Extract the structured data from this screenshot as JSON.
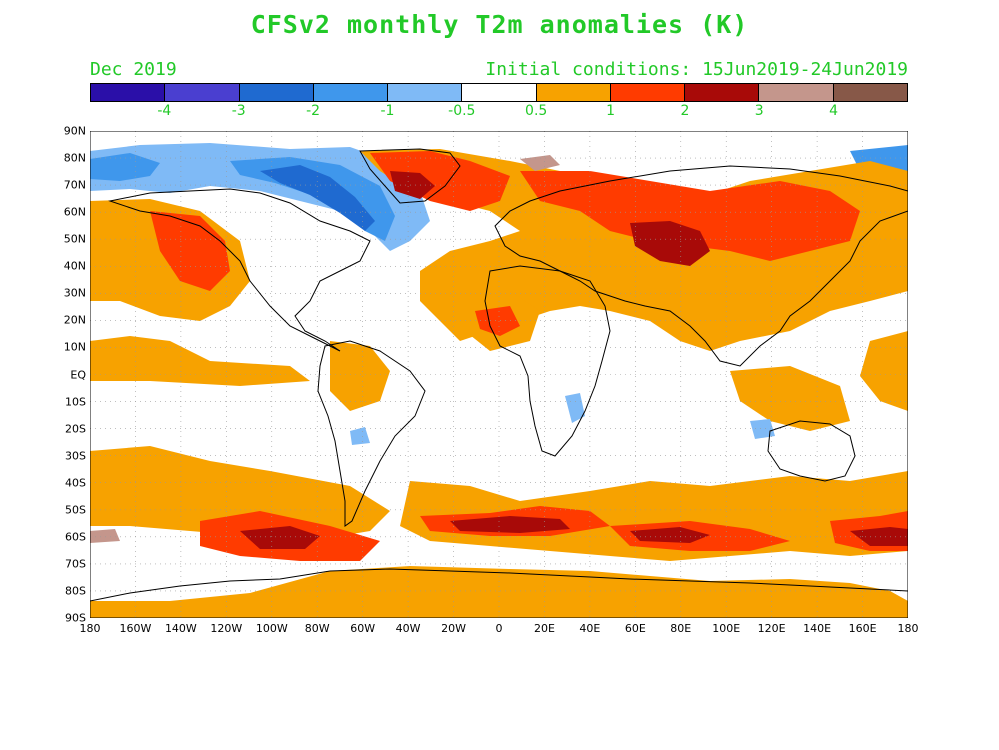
{
  "title": "CFSv2 monthly T2m anomalies (K)",
  "valid_month": "Dec 2019",
  "initial_conditions": "Initial conditions: 15Jun2019-24Jun2019",
  "colorbar": {
    "colors": [
      "#2a0fa8",
      "#4a3fd0",
      "#1f6ad0",
      "#3f97ec",
      "#7fbaf6",
      "#ffffff",
      "#f7a200",
      "#ff3b00",
      "#a80a08",
      "#c4968c",
      "#875848"
    ],
    "labels": [
      "-4",
      "-3",
      "-2",
      "-1",
      "-0.5",
      "0.5",
      "1",
      "2",
      "3",
      "4"
    ]
  },
  "map": {
    "lat_labels": [
      "90N",
      "80N",
      "70N",
      "60N",
      "50N",
      "40N",
      "30N",
      "20N",
      "10N",
      "EQ",
      "10S",
      "20S",
      "30S",
      "40S",
      "50S",
      "60S",
      "70S",
      "80S",
      "90S"
    ],
    "lon_labels": [
      "180",
      "160W",
      "140W",
      "120W",
      "100W",
      "80W",
      "60W",
      "40W",
      "20W",
      "0",
      "20E",
      "40E",
      "60E",
      "80E",
      "100E",
      "120E",
      "140E",
      "160E",
      "180"
    ]
  }
}
